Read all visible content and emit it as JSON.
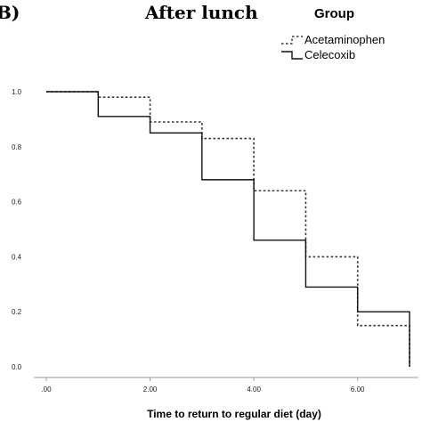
{
  "panel_label": "B)",
  "chart_data": {
    "type": "line",
    "title": "After lunch",
    "xlabel": "Time to return to regular diet (day)",
    "ylabel": "",
    "xlim": [
      0,
      7
    ],
    "ylim": [
      0,
      1
    ],
    "x_ticks": [
      ".00",
      "2.00",
      "4.00",
      "6.00"
    ],
    "x_tick_values": [
      0,
      2,
      4,
      6
    ],
    "y_ticks": [
      "0.0",
      "0.2",
      "0.4",
      "0.6",
      "0.8",
      "1.0"
    ],
    "y_tick_values": [
      0,
      0.2,
      0.4,
      0.6,
      0.8,
      1.0
    ],
    "legend_title": "Group",
    "legend_position": "top-right",
    "grid": false,
    "series": [
      {
        "name": "Acetaminophen",
        "style": "dashed",
        "color": "#333333",
        "x": [
          0,
          1,
          2,
          3,
          4,
          5,
          6,
          7,
          7
        ],
        "y": [
          1.0,
          0.98,
          0.89,
          0.83,
          0.64,
          0.4,
          0.15,
          0.15,
          0.0
        ]
      },
      {
        "name": "Celecoxib",
        "style": "solid",
        "color": "#111111",
        "x": [
          0,
          1,
          2,
          3,
          4,
          5,
          6,
          7,
          7
        ],
        "y": [
          1.0,
          0.91,
          0.85,
          0.68,
          0.46,
          0.29,
          0.2,
          0.2,
          0.0
        ]
      }
    ]
  }
}
